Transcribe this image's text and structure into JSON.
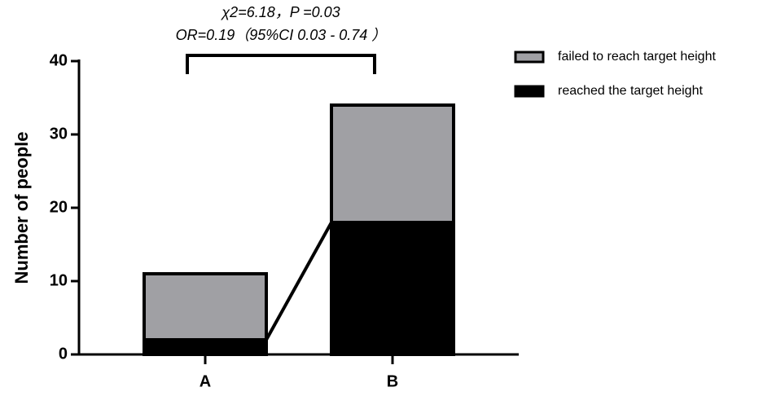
{
  "chart_data": {
    "type": "bar",
    "stacked": true,
    "annotations": [
      "χ2=6.18，P =0.03",
      "OR=0.19（95%CI 0.03 - 0.74 ）"
    ],
    "y_label": "Number of people",
    "categories": [
      "A",
      "B"
    ],
    "series": [
      {
        "name": "reached the target height",
        "color": "#000000",
        "values": [
          2,
          18
        ]
      },
      {
        "name": "failed to reach target height",
        "color": "#a0a0a4",
        "values": [
          9,
          16
        ]
      }
    ],
    "ylim": [
      0,
      40
    ],
    "yticks": [
      0,
      10,
      20,
      30,
      40
    ]
  }
}
